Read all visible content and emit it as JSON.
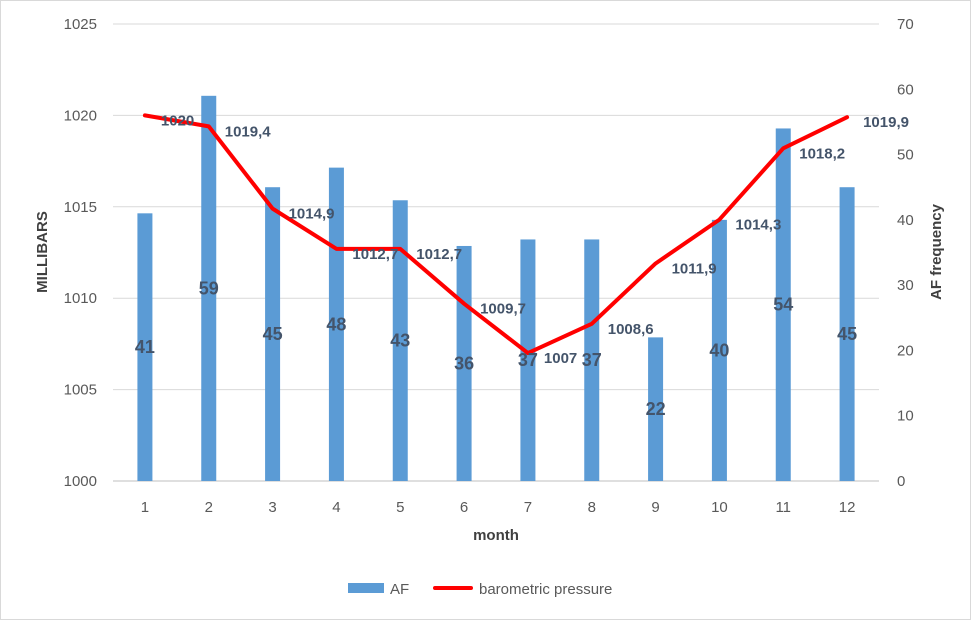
{
  "chart_data": {
    "type": "bar+line",
    "x": [
      1,
      2,
      3,
      4,
      5,
      6,
      7,
      8,
      9,
      10,
      11,
      12
    ],
    "xlabel": "month",
    "ylabel_left": "MILLIBARS",
    "ylabel_right": "AF frequency",
    "ylim_left": [
      1000,
      1025
    ],
    "yticks_left": [
      1000,
      1005,
      1010,
      1015,
      1020,
      1025
    ],
    "ylim_right": [
      0,
      70
    ],
    "yticks_right": [
      0,
      10,
      20,
      30,
      40,
      50,
      60,
      70
    ],
    "grid": true,
    "legend_position": "bottom",
    "series": [
      {
        "name": "AF",
        "type": "bar",
        "axis": "right",
        "color": "#5b9bd5",
        "values": [
          41,
          59,
          45,
          48,
          43,
          36,
          37,
          37,
          22,
          40,
          54,
          45
        ],
        "labels": [
          "41",
          "59",
          "45",
          "48",
          "43",
          "36",
          "37",
          "37",
          "22",
          "40",
          "54",
          "45"
        ]
      },
      {
        "name": "barometric pressure",
        "type": "line",
        "axis": "left",
        "color": "#ff0000",
        "values": [
          1020,
          1019.4,
          1014.9,
          1012.7,
          1012.7,
          1009.7,
          1007,
          1008.6,
          1011.9,
          1014.3,
          1018.2,
          1019.9
        ],
        "labels": [
          "1020",
          "1019,4",
          "1014,9",
          "1012,7",
          "1012,7",
          "1009,7",
          "1007",
          "1008,6",
          "1011,9",
          "1014,3",
          "1018,2",
          "1019,9"
        ]
      }
    ]
  }
}
